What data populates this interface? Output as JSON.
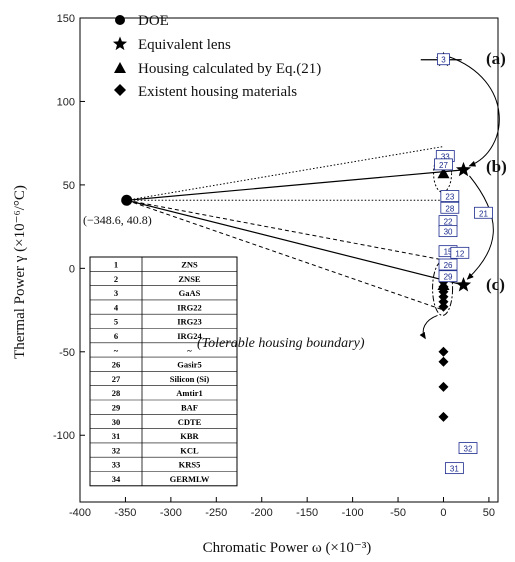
{
  "chart_data": {
    "type": "scatter",
    "xlabel": "Chromatic Power ω (×10⁻³)",
    "ylabel": "Thermal Power γ (×10⁻⁶/°C)",
    "xlim": [
      -400,
      60
    ],
    "ylim": [
      -140,
      150
    ],
    "x_ticks": [
      "-400",
      "-350",
      "-300",
      "-250",
      "-200",
      "-150",
      "-100",
      "-50",
      "0",
      "50"
    ],
    "y_ticks": [
      "-100",
      "-50",
      "0",
      "50",
      "100",
      "150"
    ],
    "legend": [
      {
        "marker": "circle",
        "label": "DOE"
      },
      {
        "marker": "star",
        "label": "Equivalent lens"
      },
      {
        "marker": "triangle",
        "label": "Housing calculated by Eq.(21)"
      },
      {
        "marker": "diamond",
        "label": "Existent  housing materials"
      }
    ],
    "doe": {
      "x": -348.6,
      "y": 40.8,
      "label": "(−348.6, 40.8)"
    },
    "equivalent_lens": [
      {
        "x": 0,
        "y": 125,
        "case": "(a)"
      },
      {
        "x": 22,
        "y": 59,
        "case": "(b)"
      },
      {
        "x": 22,
        "y": -10,
        "case": "(c)"
      }
    ],
    "housing_calculated": [
      {
        "x": 0,
        "y": 125
      },
      {
        "x": 0,
        "y": 57
      },
      {
        "x": 0,
        "y": -10
      }
    ],
    "existent_housing": [
      {
        "y": -5
      },
      {
        "y": -8
      },
      {
        "y": -11
      },
      {
        "y": -14
      },
      {
        "y": -17
      },
      {
        "y": -20
      },
      {
        "y": -23
      },
      {
        "y": -50
      },
      {
        "y": -56
      },
      {
        "y": -71
      },
      {
        "y": -89
      }
    ],
    "material_labels": [
      {
        "id": "3",
        "x": 0,
        "y": 125
      },
      {
        "id": "33",
        "x": 2,
        "y": 67
      },
      {
        "id": "27",
        "x": 0,
        "y": 62
      },
      {
        "id": "23",
        "x": 7,
        "y": 43
      },
      {
        "id": "28",
        "x": 7,
        "y": 36
      },
      {
        "id": "22",
        "x": 5,
        "y": 28
      },
      {
        "id": "30",
        "x": 5,
        "y": 22
      },
      {
        "id": "21",
        "x": 44,
        "y": 33
      },
      {
        "id": "15",
        "x": 5,
        "y": 10
      },
      {
        "id": "12",
        "x": 18,
        "y": 9
      },
      {
        "id": "26",
        "x": 5,
        "y": 2
      },
      {
        "id": "29",
        "x": 5,
        "y": -5
      },
      {
        "id": "32",
        "x": 27,
        "y": -108
      },
      {
        "id": "31",
        "x": 12,
        "y": -120
      }
    ],
    "region_labels": [
      "(a)",
      "(b)",
      "(c)"
    ],
    "annotation": "(Tolerable housing boundary)",
    "grid": false,
    "legend_position": "top-left"
  },
  "materials_table": {
    "rows": [
      [
        "1",
        "ZNS"
      ],
      [
        "2",
        "ZNSE"
      ],
      [
        "3",
        "GaAS"
      ],
      [
        "4",
        "IRG22"
      ],
      [
        "5",
        "IRG23"
      ],
      [
        "6",
        "IRG24"
      ],
      [
        "~",
        "~"
      ],
      [
        "26",
        "Gasir5"
      ],
      [
        "27",
        "Silicon (Si)"
      ],
      [
        "28",
        "Amtir1"
      ],
      [
        "29",
        "BAF"
      ],
      [
        "30",
        "CDTE"
      ],
      [
        "31",
        "KBR"
      ],
      [
        "32",
        "KCL"
      ],
      [
        "33",
        "KRS5"
      ],
      [
        "34",
        "GERMLW"
      ]
    ]
  },
  "colors": {
    "ink": "#000000",
    "label_box": "#1a2a8c"
  }
}
